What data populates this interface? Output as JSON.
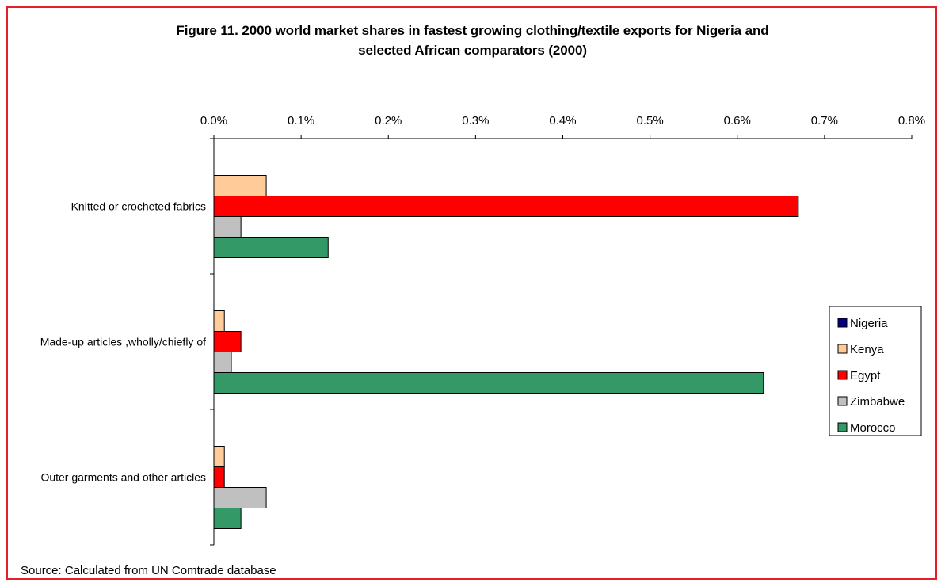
{
  "chart_data": {
    "type": "bar",
    "orientation": "horizontal",
    "title_line1": "Figure 11. 2000 world market shares in fastest growing clothing/textile exports for Nigeria and",
    "title_line2": "selected African comparators (2000)",
    "categories": [
      "Knitted or crocheted fabrics",
      "Made-up articles ,wholly/chiefly of",
      "Outer garments and other articles"
    ],
    "x_ticks": [
      "0.0%",
      "0.1%",
      "0.2%",
      "0.3%",
      "0.4%",
      "0.5%",
      "0.6%",
      "0.7%",
      "0.8%"
    ],
    "xlim": [
      0,
      0.8
    ],
    "x_unit": "%",
    "series": [
      {
        "name": "Nigeria",
        "color": "#000080",
        "values": [
          0,
          0,
          0
        ]
      },
      {
        "name": "Kenya",
        "color": "#ffcc99",
        "values": [
          0.06,
          0.012,
          0.012
        ]
      },
      {
        "name": "Egypt",
        "color": "#ff0000",
        "values": [
          0.67,
          0.031,
          0.012
        ]
      },
      {
        "name": "Zimbabwe",
        "color": "#c0c0c0",
        "values": [
          0.031,
          0.02,
          0.06
        ]
      },
      {
        "name": "Morocco",
        "color": "#339966",
        "values": [
          0.131,
          0.63,
          0.031
        ]
      }
    ],
    "legend_position": "right",
    "grid": false
  },
  "source_text": "Source: Calculated from UN Comtrade database",
  "colors": {
    "frame": "#e41f26"
  }
}
